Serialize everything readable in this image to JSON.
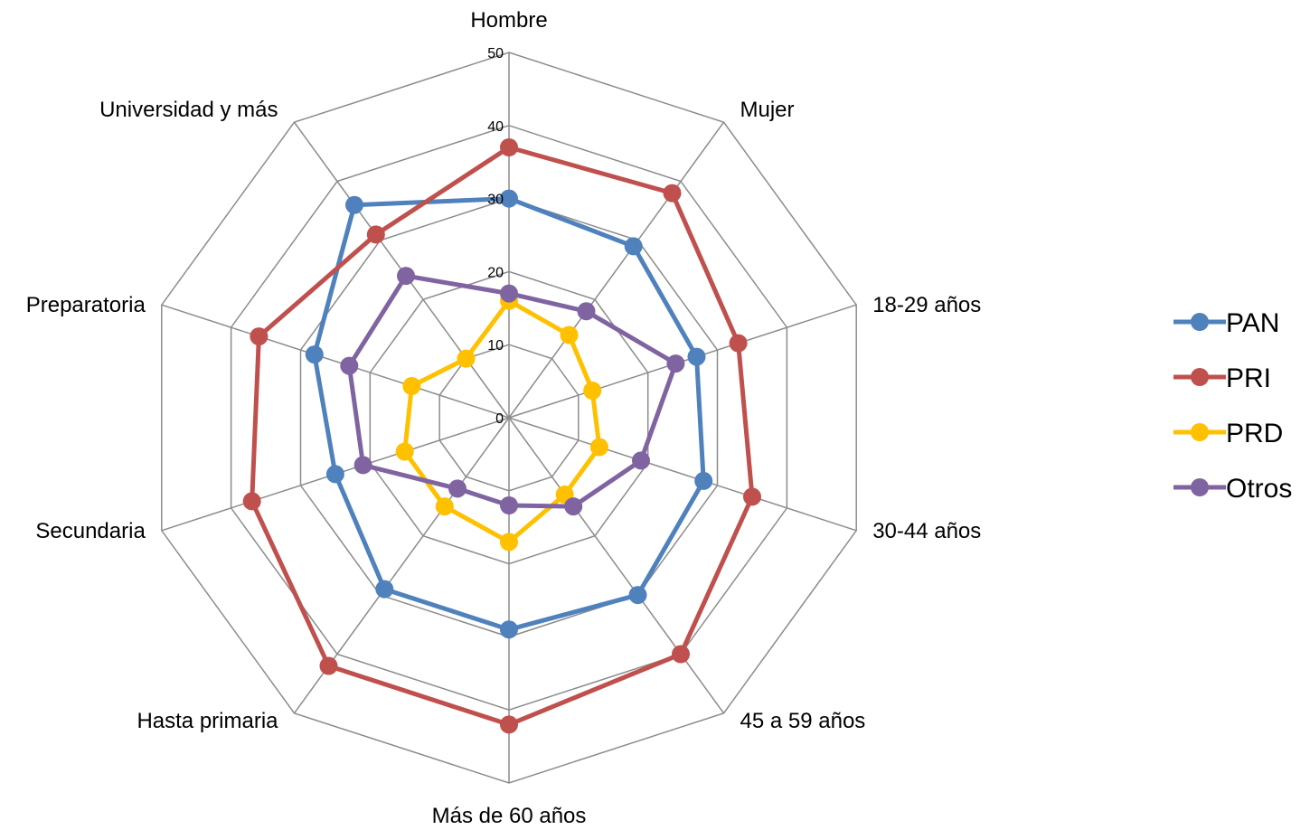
{
  "chart_data": {
    "type": "radar",
    "title": "",
    "categories": [
      "Hombre",
      "Mujer",
      "18-29 años",
      "30-44 años",
      "45 a 59 años",
      "Más de 60 años",
      "Hasta primaria",
      "Secundaria",
      "Preparatoria",
      "Universidad y más"
    ],
    "rlim": [
      0,
      50
    ],
    "ticks": [
      0,
      10,
      20,
      30,
      40,
      50
    ],
    "tick_labels": [
      "0",
      "10",
      "20",
      "30",
      "40",
      "50"
    ],
    "grid": true,
    "legend_position": "right",
    "series": [
      {
        "name": "PAN",
        "color": "#4F81BD",
        "values": [
          30,
          29,
          27,
          28,
          30,
          29,
          29,
          25,
          28,
          36
        ]
      },
      {
        "name": "PRI",
        "color": "#C0504D",
        "values": [
          37,
          38,
          33,
          35,
          40,
          42,
          42,
          37,
          36,
          31
        ]
      },
      {
        "name": "PRD",
        "color": "#FFC000",
        "values": [
          16,
          14,
          12,
          13,
          13,
          17,
          15,
          15,
          14,
          10
        ]
      },
      {
        "name": "Otros",
        "color": "#8064A2",
        "values": [
          17,
          18,
          24,
          19,
          15,
          12,
          12,
          21,
          23,
          24
        ]
      }
    ]
  }
}
